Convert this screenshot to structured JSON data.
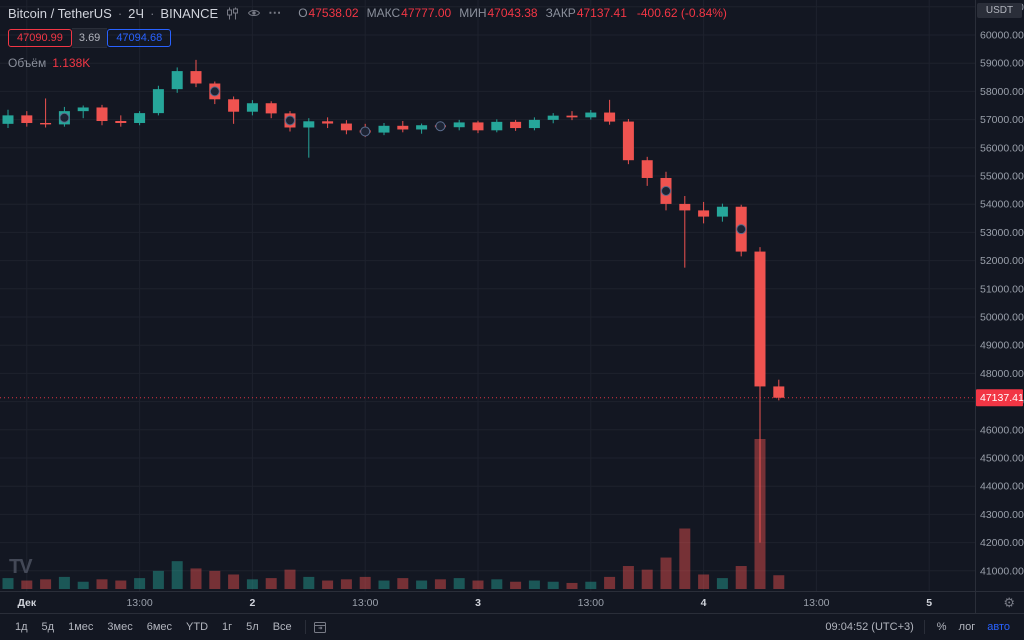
{
  "header": {
    "symbol": "Bitcoin / TetherUS",
    "separator": "·",
    "interval": "2Ч",
    "exchange": "BINANCE",
    "ohlc": [
      {
        "label": "О",
        "value": "47538.02"
      },
      {
        "label": "МАКС",
        "value": "47777.00"
      },
      {
        "label": "МИН",
        "value": "47043.38"
      },
      {
        "label": "ЗАКР",
        "value": "47137.41"
      }
    ],
    "change": "-400.62 (-0.84%)",
    "sell_price": "47090.99",
    "spread": "3.69",
    "buy_price": "47094.68",
    "volume_label": "Объём",
    "volume_value": "1.138K"
  },
  "icons": {
    "more": "⋯",
    "settings": "⚙",
    "logo_text": "TV"
  },
  "price_axis": {
    "currency": "USDT",
    "min": 41000,
    "max": 61000,
    "step": 1000,
    "last_price": 47137.41,
    "last_price_label": "47137.41"
  },
  "time_axis": {
    "ticks": [
      {
        "i": 1,
        "label": "Дек",
        "major": true
      },
      {
        "i": 7,
        "label": "13:00",
        "major": false
      },
      {
        "i": 13,
        "label": "2",
        "major": true
      },
      {
        "i": 19,
        "label": "13:00",
        "major": false
      },
      {
        "i": 25,
        "label": "3",
        "major": true
      },
      {
        "i": 31,
        "label": "13:00",
        "major": false
      },
      {
        "i": 37,
        "label": "4",
        "major": true
      },
      {
        "i": 43,
        "label": "13:00",
        "major": false
      },
      {
        "i": 49,
        "label": "5",
        "major": true
      }
    ]
  },
  "toolbar": {
    "ranges": [
      "1д",
      "5д",
      "1мес",
      "3мес",
      "6мес",
      "YTD",
      "1г",
      "5л",
      "Все"
    ],
    "clock": "09:04:52 (UTC+3)",
    "percent": "%",
    "log": "лог",
    "auto": "авто"
  },
  "colors": {
    "background": "#131722",
    "grid": "#1e222d",
    "up": "#26a69a",
    "down": "#ef5350",
    "vol_up": "rgba(38,166,154,0.45)",
    "vol_down": "rgba(239,83,80,0.45)",
    "axis_text": "#9aa0ab",
    "axis_text_major": "#d1d4dc",
    "border": "#2a2e39",
    "accent_red": "#f23645",
    "accent_blue": "#2962ff",
    "price_line": "#f23645",
    "price_label_bg": "#f23645",
    "marker_fill": "#1c2333",
    "marker_stroke": "#5a6b8c"
  },
  "chart_data": {
    "type": "candlestick",
    "title": "Bitcoin / TetherUS · 2Ч · BINANCE",
    "ylabel": "Price (USDT)",
    "ylim": [
      41000,
      61000
    ],
    "x_unit": "2-hour bars, Дек 1 – 5",
    "columns": [
      "open",
      "high",
      "low",
      "close",
      "volume_K"
    ],
    "last_price": 47137.41,
    "last_volume_K": 1.138,
    "markers": [
      3,
      11,
      15,
      19,
      23,
      35,
      39
    ],
    "candles": [
      [
        56850,
        57350,
        56700,
        57150,
        0.9
      ],
      [
        57150,
        57300,
        56750,
        56880,
        0.7
      ],
      [
        56880,
        57750,
        56720,
        56830,
        0.8
      ],
      [
        56830,
        57450,
        56750,
        57300,
        1.0
      ],
      [
        57300,
        57500,
        57050,
        57430,
        0.6
      ],
      [
        57430,
        57520,
        56800,
        56950,
        0.8
      ],
      [
        56950,
        57150,
        56750,
        56880,
        0.7
      ],
      [
        56880,
        57300,
        56800,
        57230,
        0.9
      ],
      [
        57230,
        58200,
        57150,
        58080,
        1.5
      ],
      [
        58080,
        58850,
        57950,
        58720,
        2.3
      ],
      [
        58720,
        59120,
        58150,
        58280,
        1.7
      ],
      [
        58280,
        58350,
        57550,
        57720,
        1.5
      ],
      [
        57720,
        57820,
        56850,
        57280,
        1.2
      ],
      [
        57280,
        57690,
        57150,
        57580,
        0.8
      ],
      [
        57580,
        57650,
        57050,
        57220,
        0.9
      ],
      [
        57220,
        57300,
        56580,
        56720,
        1.6
      ],
      [
        56720,
        57050,
        55650,
        56940,
        1.0
      ],
      [
        56940,
        57080,
        56700,
        56860,
        0.7
      ],
      [
        56860,
        56980,
        56480,
        56620,
        0.8
      ],
      [
        56620,
        56850,
        56380,
        56540,
        1.0
      ],
      [
        56540,
        56880,
        56450,
        56780,
        0.7
      ],
      [
        56780,
        56950,
        56550,
        56650,
        0.9
      ],
      [
        56650,
        56860,
        56500,
        56800,
        0.7
      ],
      [
        56800,
        56880,
        56600,
        56730,
        0.8
      ],
      [
        56730,
        56990,
        56620,
        56900,
        0.9
      ],
      [
        56900,
        56960,
        56520,
        56620,
        0.7
      ],
      [
        56620,
        57010,
        56550,
        56920,
        0.8
      ],
      [
        56920,
        56990,
        56600,
        56700,
        0.6
      ],
      [
        56700,
        57080,
        56620,
        56990,
        0.7
      ],
      [
        56990,
        57230,
        56870,
        57140,
        0.6
      ],
      [
        57140,
        57300,
        56980,
        57080,
        0.5
      ],
      [
        57080,
        57340,
        57000,
        57250,
        0.6
      ],
      [
        57250,
        57700,
        56820,
        56930,
        1.0
      ],
      [
        56930,
        57020,
        55420,
        55560,
        1.9
      ],
      [
        55560,
        55680,
        54650,
        54930,
        1.6
      ],
      [
        54930,
        55150,
        53780,
        54010,
        2.6
      ],
      [
        54010,
        54290,
        51750,
        53780,
        5.0
      ],
      [
        53780,
        54080,
        53320,
        53560,
        1.2
      ],
      [
        53560,
        54020,
        53380,
        53910,
        0.9
      ],
      [
        53910,
        53980,
        52150,
        52320,
        1.9
      ],
      [
        52320,
        52480,
        42000,
        47538.02,
        12.4
      ],
      [
        47538.02,
        47777.0,
        47043.38,
        47137.41,
        1.138
      ]
    ]
  }
}
